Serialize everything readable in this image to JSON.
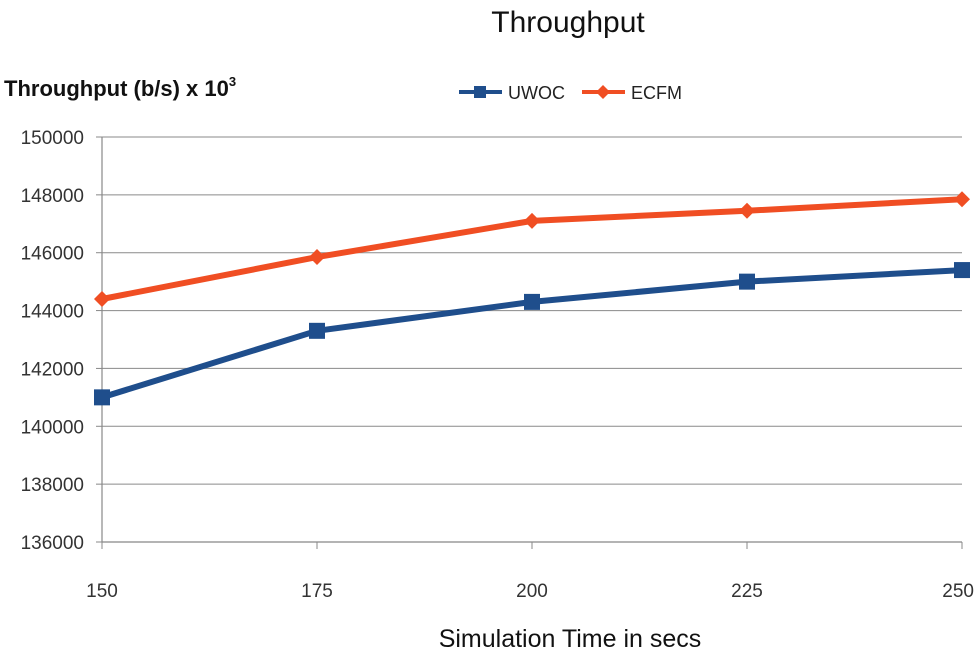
{
  "chart_data": {
    "type": "line",
    "title": "Throughput",
    "ylabel": "Throughput (b/s) x 10",
    "ylabel_exponent": "3",
    "xlabel": "Simulation Time in secs",
    "x": [
      150,
      175,
      200,
      225,
      250
    ],
    "x_tick_labels": [
      "150",
      "175",
      "200",
      "225",
      "250"
    ],
    "ylim": [
      136000,
      150000
    ],
    "y_ticks": [
      136000,
      138000,
      140000,
      142000,
      144000,
      146000,
      148000,
      150000
    ],
    "y_tick_labels": [
      "136000",
      "138000",
      "140000",
      "142000",
      "144000",
      "146000",
      "148000",
      "150000"
    ],
    "grid": "horizontal",
    "legend_position": "top",
    "series": [
      {
        "name": "UWOC",
        "color": "#1f4e8c",
        "marker": "square",
        "values": [
          141000,
          143300,
          144300,
          145000,
          145400
        ]
      },
      {
        "name": "ECFM",
        "color": "#f04e23",
        "marker": "diamond",
        "values": [
          144400,
          145850,
          147100,
          147450,
          147850
        ]
      }
    ]
  }
}
